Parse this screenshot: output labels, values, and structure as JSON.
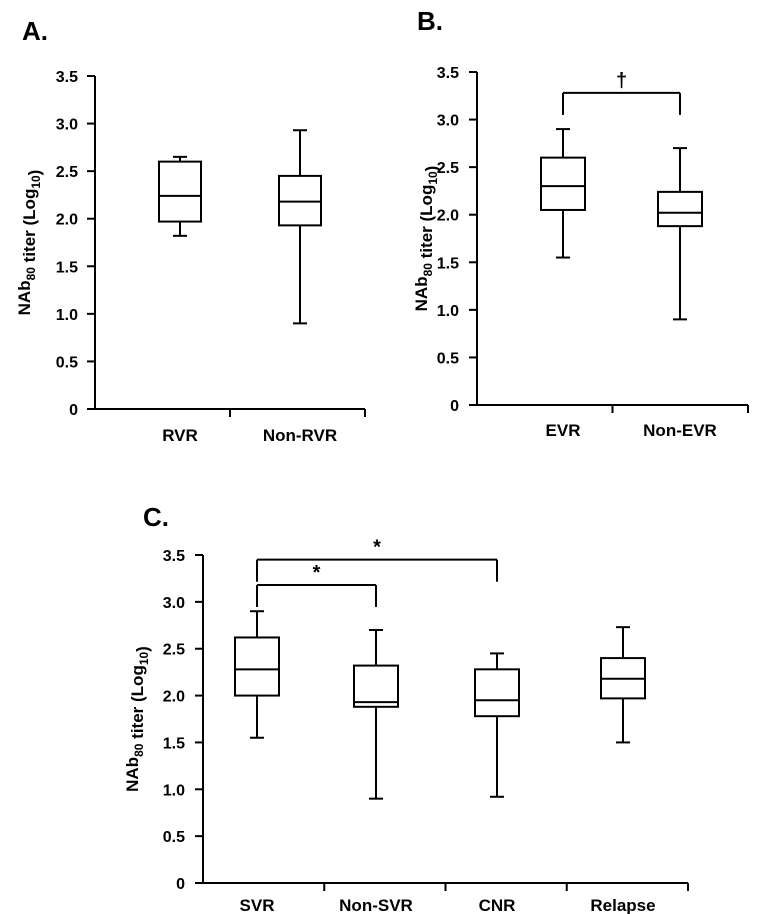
{
  "chart_data": [
    {
      "type": "box",
      "panel_label": "A.",
      "ylabel": {
        "main": "NAb",
        "sub": "80",
        "rest": " titer (Log",
        "sub2": "10",
        "end": ")"
      },
      "ylim": [
        0,
        3.5
      ],
      "yticks": [
        "0",
        "0.5",
        "1.0",
        "1.5",
        "2.0",
        "2.5",
        "3.0",
        "3.5"
      ],
      "categories": [
        "RVR",
        "Non-RVR"
      ],
      "boxes": [
        {
          "min": 1.82,
          "q1": 1.97,
          "median": 2.24,
          "q3": 2.6,
          "max": 2.65
        },
        {
          "min": 0.9,
          "q1": 1.93,
          "median": 2.18,
          "q3": 2.45,
          "max": 2.93
        }
      ],
      "annotations": []
    },
    {
      "type": "box",
      "panel_label": "B.",
      "ylabel": {
        "main": "NAb",
        "sub": "80",
        "rest": " titer (Log",
        "sub2": "10",
        "end": ")"
      },
      "ylim": [
        0,
        3.5
      ],
      "yticks": [
        "0",
        "0.5",
        "1.0",
        "1.5",
        "2.0",
        "2.5",
        "3.0",
        "3.5"
      ],
      "categories": [
        "EVR",
        "Non-EVR"
      ],
      "boxes": [
        {
          "min": 1.55,
          "q1": 2.05,
          "median": 2.3,
          "q3": 2.6,
          "max": 2.9
        },
        {
          "min": 0.9,
          "q1": 1.88,
          "median": 2.02,
          "q3": 2.24,
          "max": 2.7
        }
      ],
      "annotations": [
        {
          "from": 0,
          "to": 1,
          "y": 3.28,
          "symbol": "†"
        }
      ]
    },
    {
      "type": "box",
      "panel_label": "C.",
      "ylabel": {
        "main": "NAb",
        "sub": "80",
        "rest": " titer (Log",
        "sub2": "10",
        "end": ")"
      },
      "ylim": [
        0,
        3.5
      ],
      "yticks": [
        "0",
        "0.5",
        "1.0",
        "1.5",
        "2.0",
        "2.5",
        "3.0",
        "3.5"
      ],
      "categories": [
        "SVR",
        "Non-SVR",
        "CNR",
        "Relapse"
      ],
      "boxes": [
        {
          "min": 1.55,
          "q1": 2.0,
          "median": 2.28,
          "q3": 2.62,
          "max": 2.9
        },
        {
          "min": 0.9,
          "q1": 1.88,
          "median": 1.93,
          "q3": 2.32,
          "max": 2.7
        },
        {
          "min": 0.92,
          "q1": 1.78,
          "median": 1.95,
          "q3": 2.28,
          "max": 2.45
        },
        {
          "min": 1.5,
          "q1": 1.97,
          "median": 2.18,
          "q3": 2.4,
          "max": 2.73
        }
      ],
      "annotations": [
        {
          "from": 0,
          "to": 1,
          "y": 3.18,
          "symbol": "*"
        },
        {
          "from": 0,
          "to": 2,
          "y": 3.45,
          "symbol": "*"
        }
      ]
    }
  ]
}
